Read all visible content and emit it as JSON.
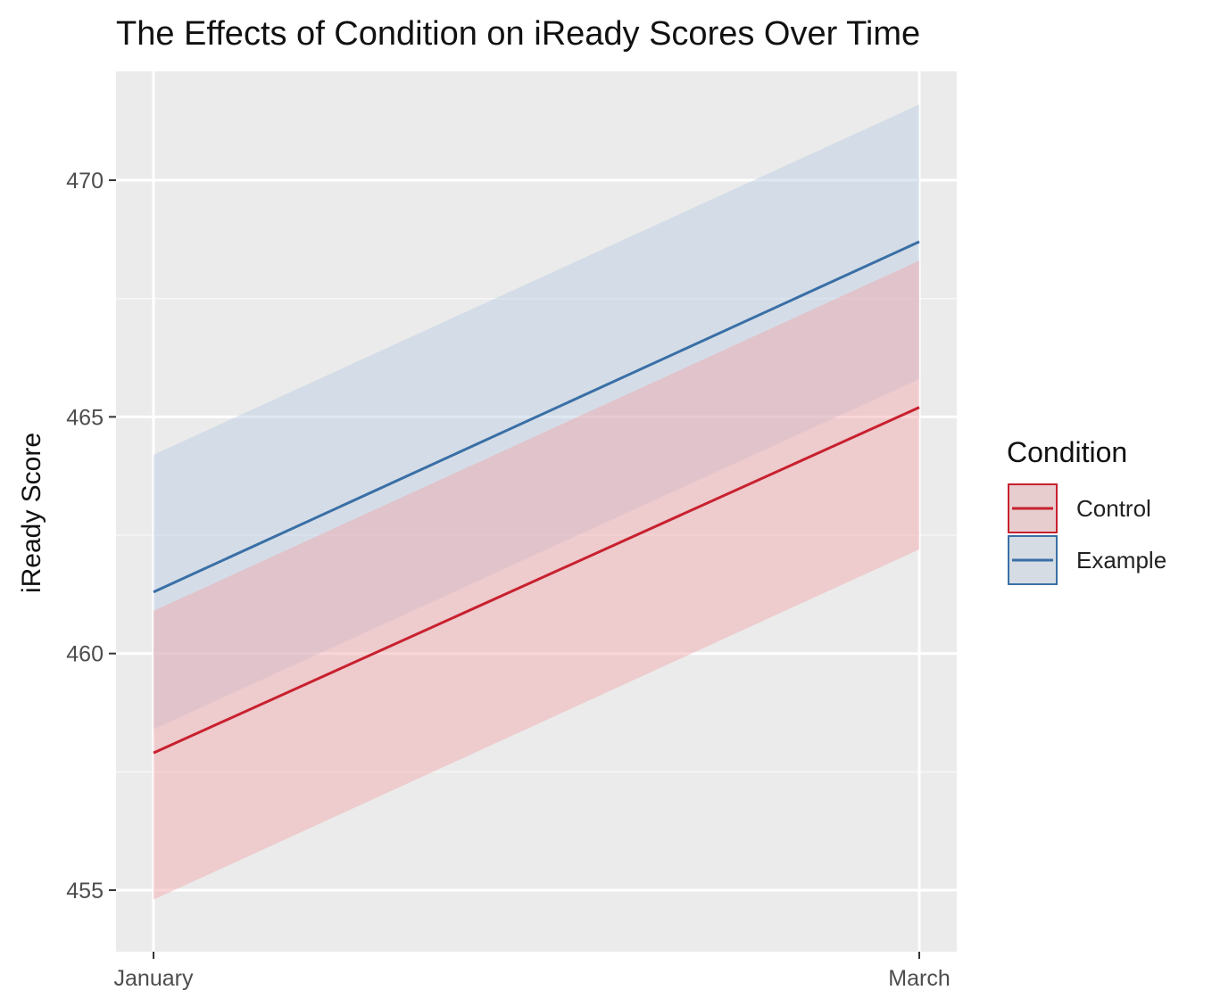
{
  "chart_data": {
    "type": "line",
    "title": "The Effects of Condition on iReady Scores Over Time",
    "xlabel": "",
    "ylabel": "iReady Score",
    "categories": [
      "January",
      "March"
    ],
    "ylim": [
      453.7,
      472.3
    ],
    "yticks": [
      455,
      460,
      465,
      470
    ],
    "grid": true,
    "legend": {
      "title": "Condition",
      "placement": "right"
    },
    "series": [
      {
        "name": "Control",
        "color": "#c8202e",
        "band_color": "#f2a3a8",
        "values": [
          457.9,
          465.2
        ],
        "lower": [
          454.8,
          462.2
        ],
        "upper": [
          460.9,
          468.3
        ]
      },
      {
        "name": "Example",
        "color": "#3a6fa6",
        "band_color": "#b9cde3",
        "values": [
          461.3,
          468.7
        ],
        "lower": [
          458.4,
          465.8
        ],
        "upper": [
          464.2,
          471.6
        ]
      }
    ]
  }
}
